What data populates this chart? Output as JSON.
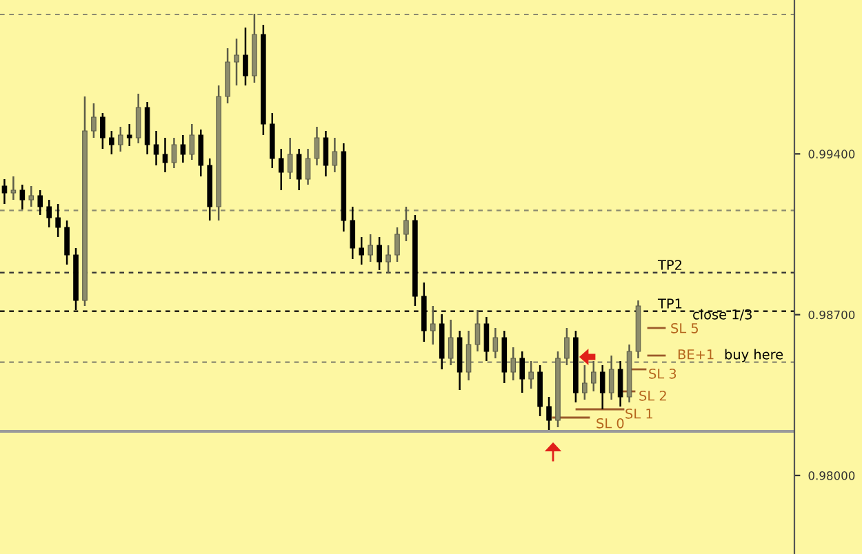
{
  "chart_data": {
    "type": "candlestick",
    "categories": [
      null,
      null,
      null,
      null,
      null,
      null,
      null,
      null,
      null,
      null,
      null,
      null,
      null,
      null,
      null,
      null,
      null,
      null,
      null,
      null,
      null,
      null,
      null,
      null,
      null,
      null,
      null,
      null,
      null,
      null,
      null,
      null,
      null,
      null,
      null,
      null,
      null,
      null,
      null,
      null,
      null,
      null,
      null,
      null,
      null,
      null,
      null,
      null,
      null,
      null,
      null,
      null,
      null,
      null,
      null,
      null,
      null,
      null,
      null,
      null,
      null,
      null,
      null,
      null,
      null,
      null,
      null,
      null,
      null,
      null,
      null,
      null,
      null,
      null,
      null,
      null,
      null,
      null,
      null,
      null,
      null,
      null,
      null,
      null,
      null,
      null,
      null,
      null,
      null
    ],
    "ohlc": [
      [
        0.9926,
        0.9929,
        0.99182,
        0.9923
      ],
      [
        0.9923,
        0.99302,
        0.992,
        0.99242
      ],
      [
        0.99242,
        0.99266,
        0.99158,
        0.992
      ],
      [
        0.992,
        0.9926,
        0.9917,
        0.99218
      ],
      [
        0.99218,
        0.99242,
        0.99134,
        0.9917
      ],
      [
        0.9917,
        0.992,
        0.9908,
        0.99122
      ],
      [
        0.99122,
        0.99182,
        0.99038,
        0.9908
      ],
      [
        0.9908,
        0.9911,
        0.98918,
        0.9896
      ],
      [
        0.9896,
        0.9899,
        0.9872,
        0.98762
      ],
      [
        0.98762,
        0.9965,
        0.98738,
        0.995
      ],
      [
        0.995,
        0.9962,
        0.9947,
        0.9956
      ],
      [
        0.9956,
        0.99578,
        0.99422,
        0.9947
      ],
      [
        0.9947,
        0.995,
        0.99398,
        0.9944
      ],
      [
        0.9944,
        0.99518,
        0.9941,
        0.99482
      ],
      [
        0.99482,
        0.9953,
        0.99434,
        0.9947
      ],
      [
        0.9947,
        0.99662,
        0.99446,
        0.99602
      ],
      [
        0.99602,
        0.99626,
        0.99398,
        0.9944
      ],
      [
        0.9944,
        0.995,
        0.9935,
        0.99398
      ],
      [
        0.99398,
        0.9947,
        0.9932,
        0.99362
      ],
      [
        0.99362,
        0.9947,
        0.99338,
        0.9944
      ],
      [
        0.9944,
        0.99482,
        0.99362,
        0.99398
      ],
      [
        0.99398,
        0.9953,
        0.99374,
        0.99482
      ],
      [
        0.99482,
        0.99506,
        0.99302,
        0.9935
      ],
      [
        0.9935,
        0.9938,
        0.9911,
        0.9917
      ],
      [
        0.9917,
        0.99698,
        0.9911,
        0.9965
      ],
      [
        0.9965,
        0.9986,
        0.9962,
        0.998
      ],
      [
        0.998,
        0.99902,
        0.99698,
        0.9983
      ],
      [
        0.9983,
        0.9995,
        0.99698,
        0.9974
      ],
      [
        0.9974,
        1.0001,
        0.9971,
        0.9992
      ],
      [
        0.9992,
        0.99962,
        0.99482,
        0.9953
      ],
      [
        0.9953,
        0.99578,
        0.99338,
        0.9938
      ],
      [
        0.9938,
        0.99422,
        0.99242,
        0.9932
      ],
      [
        0.9932,
        0.9947,
        0.9929,
        0.99398
      ],
      [
        0.99398,
        0.99422,
        0.99242,
        0.9929
      ],
      [
        0.9929,
        0.99422,
        0.99266,
        0.9938
      ],
      [
        0.9938,
        0.99518,
        0.9935,
        0.9947
      ],
      [
        0.9947,
        0.995,
        0.99302,
        0.9935
      ],
      [
        0.9935,
        0.9947,
        0.9932,
        0.9941
      ],
      [
        0.9941,
        0.99446,
        0.99062,
        0.9911
      ],
      [
        0.9911,
        0.9917,
        0.98942,
        0.9899
      ],
      [
        0.9899,
        0.99038,
        0.98918,
        0.9896
      ],
      [
        0.9896,
        0.9905,
        0.9893,
        0.99002
      ],
      [
        0.99002,
        0.99038,
        0.98894,
        0.9893
      ],
      [
        0.9893,
        0.99002,
        0.98882,
        0.9896
      ],
      [
        0.9896,
        0.9908,
        0.9893,
        0.9905
      ],
      [
        0.9905,
        0.9917,
        0.9902,
        0.9911
      ],
      [
        0.9911,
        0.99134,
        0.98738,
        0.9878
      ],
      [
        0.9878,
        0.9884,
        0.98582,
        0.9863
      ],
      [
        0.9863,
        0.98738,
        0.9857,
        0.9866
      ],
      [
        0.9866,
        0.98702,
        0.98462,
        0.9851
      ],
      [
        0.9851,
        0.98678,
        0.9848,
        0.986
      ],
      [
        0.986,
        0.9863,
        0.98372,
        0.9845
      ],
      [
        0.9845,
        0.9863,
        0.98414,
        0.9857
      ],
      [
        0.9857,
        0.9872,
        0.9854,
        0.9866
      ],
      [
        0.9866,
        0.9869,
        0.98498,
        0.9854
      ],
      [
        0.9854,
        0.98642,
        0.9851,
        0.986
      ],
      [
        0.986,
        0.9863,
        0.98402,
        0.9845
      ],
      [
        0.9845,
        0.98558,
        0.98414,
        0.9851
      ],
      [
        0.9851,
        0.9854,
        0.9836,
        0.9842
      ],
      [
        0.9842,
        0.98498,
        0.98378,
        0.9845
      ],
      [
        0.9845,
        0.9848,
        0.98258,
        0.983
      ],
      [
        0.983,
        0.98342,
        0.98198,
        0.9824
      ],
      [
        0.9824,
        0.9854,
        0.9821,
        0.9851
      ],
      [
        0.9851,
        0.98642,
        0.9848,
        0.986
      ],
      [
        0.986,
        0.9863,
        0.98318,
        0.9836
      ],
      [
        0.9836,
        0.9848,
        0.9833,
        0.98402
      ],
      [
        0.98402,
        0.98498,
        0.98366,
        0.9845
      ],
      [
        0.9845,
        0.9848,
        0.98288,
        0.9836
      ],
      [
        0.9836,
        0.98522,
        0.9833,
        0.98462
      ],
      [
        0.98462,
        0.98498,
        0.983,
        0.98342
      ],
      [
        0.98342,
        0.9857,
        0.98318,
        0.9854
      ],
      [
        0.9854,
        0.98762,
        0.9851,
        0.98738
      ],
      null,
      null,
      null,
      null,
      null,
      null,
      null,
      null,
      null,
      null,
      null,
      null,
      null,
      null,
      null,
      null,
      null
    ],
    "ylim": [
      0.97658,
      1.0007
    ],
    "yticks": [
      {
        "value": 0.994,
        "label": "0.99400"
      },
      {
        "value": 0.987,
        "label": "0.98700"
      },
      {
        "value": 0.98,
        "label": "0.98000"
      }
    ],
    "ref_lines": [
      {
        "axis": "y",
        "value": 1.00007,
        "color": "#8a8a70",
        "line_style": "dashed"
      },
      {
        "axis": "y",
        "value": 0.99154,
        "color": "#8a8a70",
        "line_style": "dashed"
      },
      {
        "axis": "y",
        "value": 0.98883,
        "label": "TP2",
        "color": "#333333",
        "line_style": "dashed"
      },
      {
        "axis": "y",
        "value": 0.98715,
        "label": "TP1",
        "color": "#000000",
        "line_style": "dashed"
      },
      {
        "axis": "y",
        "value": 0.98493,
        "color": "#8a8a70",
        "line_style": "dashed"
      },
      {
        "axis": "y",
        "value": 0.98192,
        "color": "#9a9a9a",
        "line_style": "solid"
      }
    ],
    "annotations": [
      "close 1/3",
      "SL 5",
      "BE+1",
      "buy here",
      "SL 3",
      "SL 2",
      "SL 1",
      "SL 0"
    ]
  }
}
